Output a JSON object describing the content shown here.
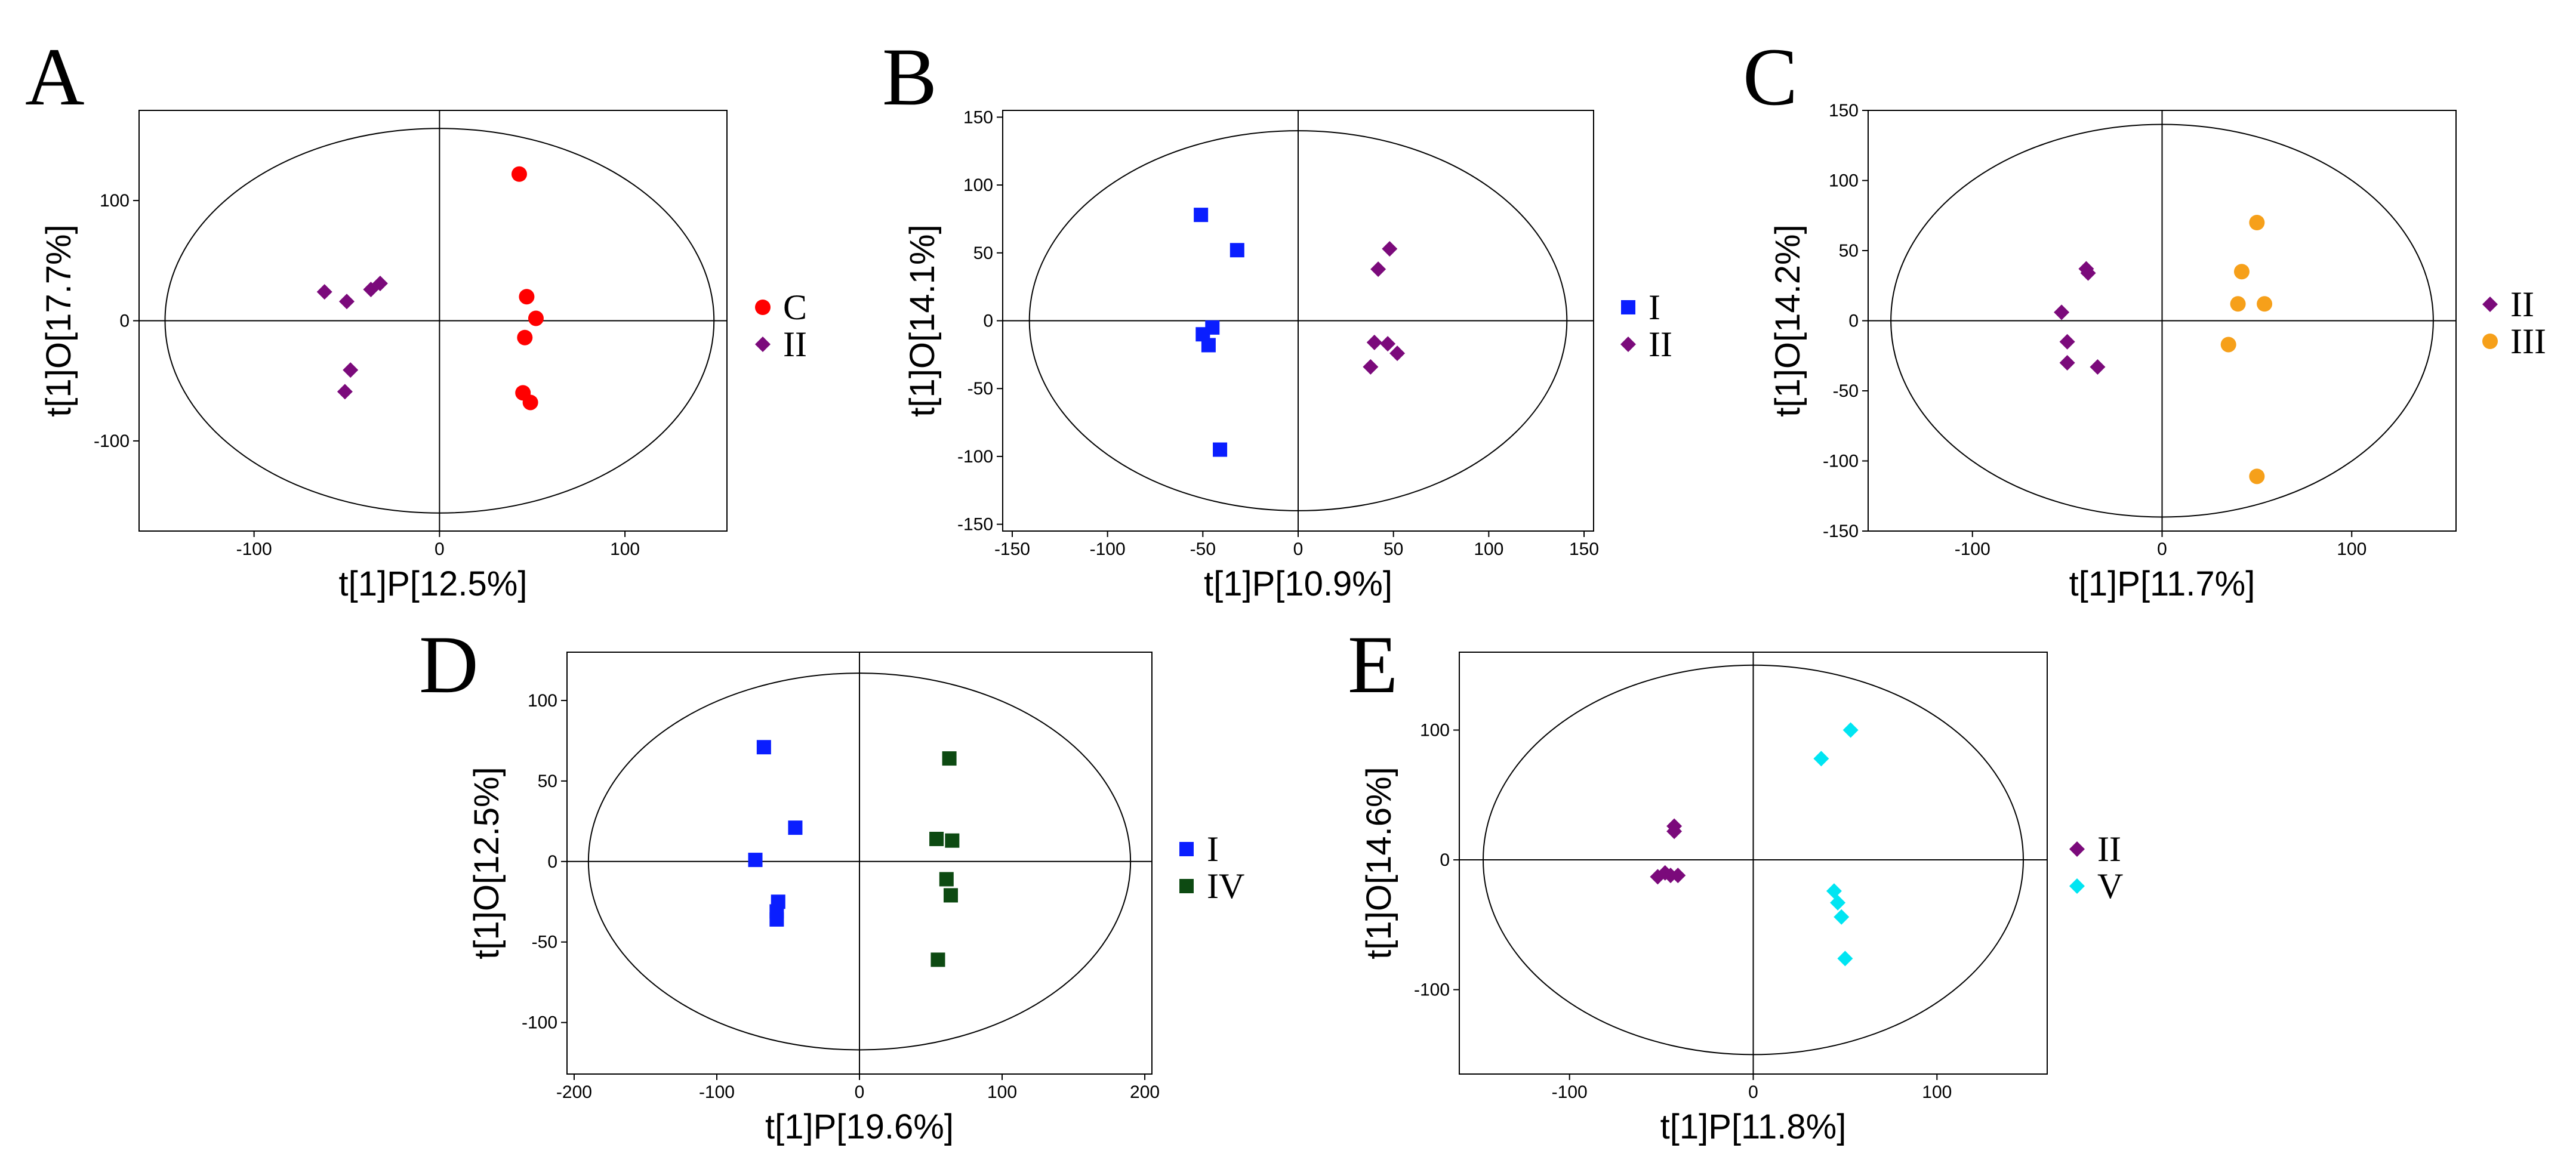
{
  "chart_data": [
    {
      "panel": "A",
      "type": "scatter",
      "xlabel": "t[1]P[12.5%]",
      "ylabel": "t[1]O[17.7%]",
      "xlim": [
        -162,
        155
      ],
      "ylim": [
        -175,
        175
      ],
      "xticks": [
        -100,
        0,
        100
      ],
      "yticks": [
        -100,
        0,
        100
      ],
      "ellipse": {
        "rx": 148,
        "ry": 160
      },
      "legend_position": "right",
      "series": [
        {
          "name": "C",
          "color": "#ff0000",
          "marker": "circle",
          "points": [
            [
              43,
              122
            ],
            [
              47,
              20
            ],
            [
              52,
              2
            ],
            [
              46,
              -14
            ],
            [
              45,
              -60
            ],
            [
              49,
              -68
            ]
          ]
        },
        {
          "name": "II",
          "color": "#7b0a7b",
          "marker": "diamond",
          "points": [
            [
              -62,
              24
            ],
            [
              -50,
              16
            ],
            [
              -37,
              26
            ],
            [
              -32,
              31
            ],
            [
              -48,
              -41
            ],
            [
              -51,
              -59
            ]
          ]
        }
      ]
    },
    {
      "panel": "B",
      "type": "scatter",
      "xlabel": "t[1]P[10.9%]",
      "ylabel": "t[1]O[14.1%]",
      "xlim": [
        -155,
        155
      ],
      "ylim": [
        -155,
        155
      ],
      "xticks": [
        -150,
        -100,
        -50,
        0,
        50,
        100,
        150
      ],
      "yticks": [
        -150,
        -100,
        -50,
        0,
        50,
        100,
        150
      ],
      "ellipse": {
        "rx": 141,
        "ry": 140
      },
      "legend_position": "right",
      "series": [
        {
          "name": "I",
          "color": "#0a1eff",
          "marker": "square",
          "points": [
            [
              -51,
              78
            ],
            [
              -32,
              52
            ],
            [
              -45,
              -5
            ],
            [
              -50,
              -10
            ],
            [
              -47,
              -18
            ],
            [
              -41,
              -95
            ]
          ]
        },
        {
          "name": "II",
          "color": "#7b0a7b",
          "marker": "diamond",
          "points": [
            [
              48,
              53
            ],
            [
              42,
              38
            ],
            [
              40,
              -16
            ],
            [
              47,
              -17
            ],
            [
              52,
              -24
            ],
            [
              38,
              -34
            ]
          ]
        }
      ]
    },
    {
      "panel": "C",
      "type": "scatter",
      "xlabel": "t[1]P[11.7%]",
      "ylabel": "t[1]O[14.2%]",
      "xlim": [
        -155,
        155
      ],
      "ylim": [
        -150,
        150
      ],
      "xticks": [
        -100,
        0,
        100
      ],
      "yticks": [
        -150,
        -100,
        -50,
        0,
        50,
        100,
        150
      ],
      "ellipse": {
        "rx": 143,
        "ry": 140
      },
      "legend_position": "right",
      "series": [
        {
          "name": "II",
          "color": "#7b0a7b",
          "marker": "diamond",
          "points": [
            [
              -53,
              6
            ],
            [
              -40,
              37
            ],
            [
              -39,
              34
            ],
            [
              -50,
              -15
            ],
            [
              -50,
              -30
            ],
            [
              -34,
              -33
            ]
          ]
        },
        {
          "name": "III",
          "color": "#f6a01a",
          "marker": "circle",
          "points": [
            [
              50,
              70
            ],
            [
              42,
              35
            ],
            [
              40,
              12
            ],
            [
              54,
              12
            ],
            [
              35,
              -17
            ],
            [
              50,
              -111
            ]
          ]
        }
      ]
    },
    {
      "panel": "D",
      "type": "scatter",
      "xlabel": "t[1]P[19.6%]",
      "ylabel": "t[1]O[12.5%]",
      "xlim": [
        -205,
        205
      ],
      "ylim": [
        -132,
        130
      ],
      "xticks": [
        -200,
        -100,
        0,
        100,
        200
      ],
      "yticks": [
        -100,
        -50,
        0,
        50,
        100
      ],
      "ellipse": {
        "rx": 190,
        "ry": 117
      },
      "legend_position": "right",
      "series": [
        {
          "name": "I",
          "color": "#0a1eff",
          "marker": "square",
          "points": [
            [
              -67,
              71
            ],
            [
              -45,
              21
            ],
            [
              -73,
              1
            ],
            [
              -57,
              -25
            ],
            [
              -58,
              -31
            ],
            [
              -58,
              -36
            ]
          ]
        },
        {
          "name": "IV",
          "color": "#0d4a12",
          "marker": "square",
          "points": [
            [
              63,
              64
            ],
            [
              54,
              14
            ],
            [
              65,
              13
            ],
            [
              61,
              -11
            ],
            [
              64,
              -21
            ],
            [
              55,
              -61
            ]
          ]
        }
      ]
    },
    {
      "panel": "E",
      "type": "scatter",
      "xlabel": "t[1]P[11.8%]",
      "ylabel": "t[1]O[14.6%]",
      "xlim": [
        -160,
        160
      ],
      "ylim": [
        -165,
        160
      ],
      "xticks": [
        -100,
        0,
        100
      ],
      "yticks": [
        -100,
        0,
        100
      ],
      "ellipse": {
        "rx": 147,
        "ry": 150
      },
      "legend_position": "right",
      "series": [
        {
          "name": "II",
          "color": "#7b0a7b",
          "marker": "diamond",
          "points": [
            [
              -43,
              26
            ],
            [
              -43,
              22
            ],
            [
              -52,
              -13
            ],
            [
              -48,
              -10
            ],
            [
              -45,
              -12
            ],
            [
              -41,
              -12
            ]
          ]
        },
        {
          "name": "V",
          "color": "#00e5f2",
          "marker": "diamond",
          "points": [
            [
              53,
              100
            ],
            [
              37,
              78
            ],
            [
              44,
              -24
            ],
            [
              46,
              -33
            ],
            [
              48,
              -44
            ],
            [
              50,
              -76
            ]
          ]
        }
      ]
    }
  ]
}
